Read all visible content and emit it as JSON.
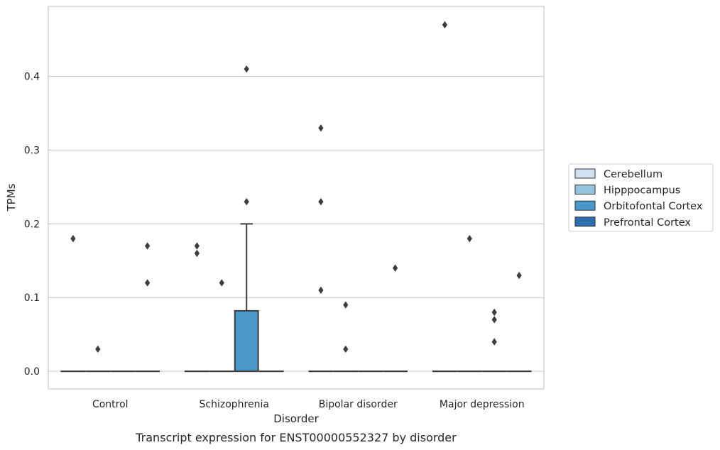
{
  "chart_data": {
    "type": "box",
    "caption": "Transcript expression for ENST00000552327 by disorder",
    "xlabel": "Disorder",
    "ylabel": "TPMs",
    "ylim": [
      -0.024,
      0.495
    ],
    "yticks": [
      "0.0",
      "0.1",
      "0.2",
      "0.3",
      "0.4"
    ],
    "ytick_values": [
      0.0,
      0.1,
      0.2,
      0.3,
      0.4
    ],
    "grid": true,
    "legend_position": "right",
    "categories": [
      "Control",
      "Schizophrenia",
      "Bipolar disorder",
      "Major depression"
    ],
    "series": [
      {
        "name": "Cerebellum",
        "color": "#d0e1f2",
        "boxes": [
          {
            "q1": 0,
            "median": 0,
            "q3": 0,
            "whisker_low": 0,
            "whisker_high": 0,
            "outliers": [
              0.18
            ]
          },
          {
            "q1": 0,
            "median": 0,
            "q3": 0,
            "whisker_low": 0,
            "whisker_high": 0,
            "outliers": [
              0.16,
              0.17
            ]
          },
          {
            "q1": 0,
            "median": 0,
            "q3": 0,
            "whisker_low": 0,
            "whisker_high": 0,
            "outliers": [
              0.11,
              0.23,
              0.33
            ]
          },
          {
            "q1": 0,
            "median": 0,
            "q3": 0,
            "whisker_low": 0,
            "whisker_high": 0,
            "outliers": [
              0.47
            ]
          }
        ]
      },
      {
        "name": "Hipppocampus",
        "color": "#94c4df",
        "boxes": [
          {
            "q1": 0,
            "median": 0,
            "q3": 0,
            "whisker_low": 0,
            "whisker_high": 0,
            "outliers": [
              0.03
            ]
          },
          {
            "q1": 0,
            "median": 0,
            "q3": 0,
            "whisker_low": 0,
            "whisker_high": 0,
            "outliers": [
              0.12
            ]
          },
          {
            "q1": 0,
            "median": 0,
            "q3": 0,
            "whisker_low": 0,
            "whisker_high": 0,
            "outliers": [
              0.03,
              0.09
            ]
          },
          {
            "q1": 0,
            "median": 0,
            "q3": 0,
            "whisker_low": 0,
            "whisker_high": 0,
            "outliers": [
              0.18
            ]
          }
        ]
      },
      {
        "name": "Orbitofontal Cortex",
        "color": "#4a98c9",
        "boxes": [
          {
            "q1": 0,
            "median": 0,
            "q3": 0,
            "whisker_low": 0,
            "whisker_high": 0,
            "outliers": []
          },
          {
            "q1": 0,
            "median": 0,
            "q3": 0.082,
            "whisker_low": 0,
            "whisker_high": 0.2,
            "outliers": [
              0.23,
              0.41
            ]
          },
          {
            "q1": 0,
            "median": 0,
            "q3": 0,
            "whisker_low": 0,
            "whisker_high": 0,
            "outliers": []
          },
          {
            "q1": 0,
            "median": 0,
            "q3": 0,
            "whisker_low": 0,
            "whisker_high": 0,
            "outliers": [
              0.04,
              0.07,
              0.08
            ]
          }
        ]
      },
      {
        "name": "Prefrontal Cortex",
        "color": "#2e6eaf",
        "boxes": [
          {
            "q1": 0,
            "median": 0,
            "q3": 0,
            "whisker_low": 0,
            "whisker_high": 0,
            "outliers": [
              0.12,
              0.17
            ]
          },
          {
            "q1": 0,
            "median": 0,
            "q3": 0,
            "whisker_low": 0,
            "whisker_high": 0,
            "outliers": []
          },
          {
            "q1": 0,
            "median": 0,
            "q3": 0,
            "whisker_low": 0,
            "whisker_high": 0,
            "outliers": [
              0.14
            ]
          },
          {
            "q1": 0,
            "median": 0,
            "q3": 0,
            "whisker_low": 0,
            "whisker_high": 0,
            "outliers": [
              0.13
            ]
          }
        ]
      }
    ]
  }
}
